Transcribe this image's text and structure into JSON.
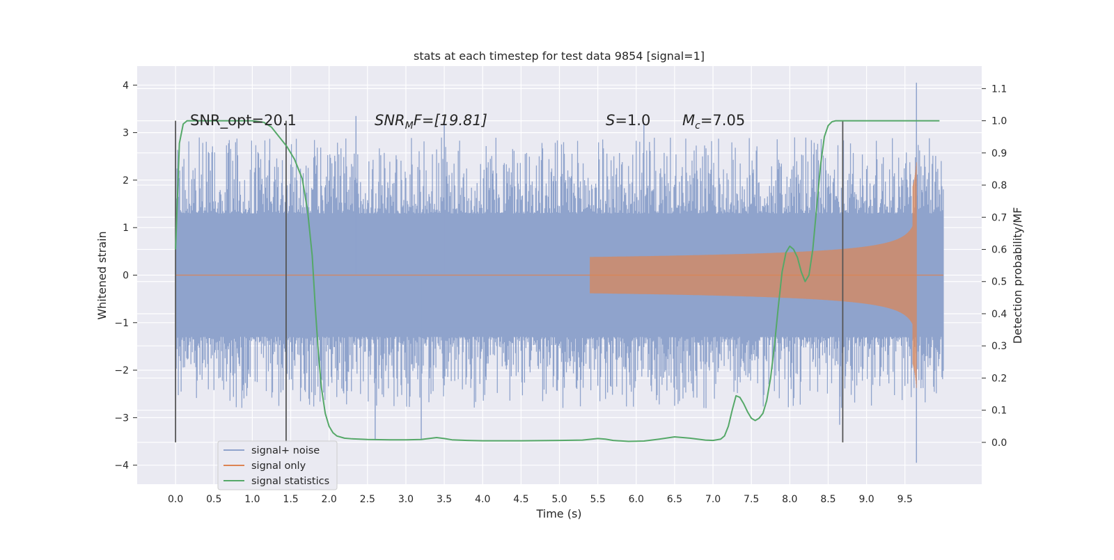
{
  "chart_data": {
    "type": "line",
    "title": "stats at each timestep for test data 9854 [signal=1]",
    "xlabel": "Time (s)",
    "ylabel": "Whitened strain",
    "ylabel_right": "Detection probability/MF",
    "xlim": [
      -0.5,
      10.5
    ],
    "ylim": [
      -4.4,
      4.4
    ],
    "ylim_right": [
      -0.13,
      1.17
    ],
    "xticks": [
      "0.0",
      "0.5",
      "1.0",
      "1.5",
      "2.0",
      "2.5",
      "3.0",
      "3.5",
      "4.0",
      "4.5",
      "5.0",
      "5.5",
      "6.0",
      "6.5",
      "7.0",
      "7.5",
      "8.0",
      "8.5",
      "9.0",
      "9.5"
    ],
    "yticks": [
      "4",
      "3",
      "2",
      "1",
      "0",
      "−1",
      "−2",
      "−3",
      "−4"
    ],
    "yticks_right": [
      "1.1",
      "1.0",
      "0.9",
      "0.8",
      "0.7",
      "0.6",
      "0.5",
      "0.4",
      "0.3",
      "0.2",
      "0.1",
      "0.0"
    ],
    "grid": true,
    "legend_position": "lower-left",
    "colors": {
      "background": "#eaeaf2",
      "grid": "#ffffff",
      "noise": "#8fa3cc",
      "signal": "#dd8452",
      "statistics": "#55a868",
      "vline": "#555555"
    },
    "annotations": {
      "snr_opt": "SNR_opt=20.1",
      "snr_mf_base": "SNR",
      "snr_mf_sub": "M",
      "snr_mf_rest": "F=[19.81]",
      "s_label": "S",
      "s_value": "=1.0",
      "mc_base": "M",
      "mc_sub": "c",
      "mc_value": "=7.05"
    },
    "vertical_lines_x": [
      0.0,
      1.44,
      8.69
    ],
    "series": [
      {
        "name": "signal+ noise",
        "kind": "noise",
        "envelope_typical": 1.3,
        "spikes": [
          {
            "x": 2.35,
            "y": 3.35
          },
          {
            "x": 3.5,
            "y": 3.2
          },
          {
            "x": 6.1,
            "y": 3.2
          },
          {
            "x": 2.6,
            "y": -3.45
          },
          {
            "x": 3.2,
            "y": -3.45
          },
          {
            "x": 9.65,
            "y": 4.05
          },
          {
            "x": 9.65,
            "y": -3.95
          },
          {
            "x": 8.65,
            "y": -3.15
          }
        ]
      },
      {
        "name": "signal only",
        "kind": "chirp",
        "start_x": 5.4,
        "peak_x": 9.65,
        "peak_amplitude": 2.4
      },
      {
        "name": "signal statistics",
        "kind": "line",
        "x": [
          0.0,
          0.05,
          0.1,
          0.15,
          0.25,
          0.4,
          0.6,
          0.8,
          1.0,
          1.15,
          1.25,
          1.35,
          1.45,
          1.55,
          1.65,
          1.72,
          1.78,
          1.82,
          1.86,
          1.9,
          1.95,
          2.0,
          2.05,
          2.1,
          2.2,
          2.3,
          2.5,
          2.8,
          3.0,
          3.2,
          3.3,
          3.4,
          3.5,
          3.6,
          3.8,
          4.0,
          4.5,
          5.0,
          5.3,
          5.5,
          5.6,
          5.7,
          5.9,
          6.1,
          6.3,
          6.5,
          6.7,
          6.9,
          7.0,
          7.1,
          7.15,
          7.2,
          7.25,
          7.3,
          7.35,
          7.4,
          7.45,
          7.5,
          7.55,
          7.6,
          7.65,
          7.7,
          7.75,
          7.8,
          7.85,
          7.9,
          7.95,
          8.0,
          8.05,
          8.1,
          8.15,
          8.2,
          8.25,
          8.3,
          8.35,
          8.4,
          8.45,
          8.5,
          8.55,
          8.6,
          8.65,
          8.7,
          8.75,
          8.8,
          8.85,
          8.9,
          8.95,
          9.0,
          9.2,
          9.5,
          9.95
        ],
        "y": [
          0.6,
          0.93,
          0.99,
          1.0,
          1.0,
          1.0,
          1.0,
          1.0,
          1.0,
          0.995,
          0.98,
          0.95,
          0.92,
          0.88,
          0.82,
          0.72,
          0.58,
          0.42,
          0.28,
          0.17,
          0.09,
          0.05,
          0.03,
          0.02,
          0.013,
          0.011,
          0.009,
          0.008,
          0.008,
          0.009,
          0.012,
          0.015,
          0.012,
          0.008,
          0.006,
          0.005,
          0.005,
          0.006,
          0.007,
          0.012,
          0.01,
          0.006,
          0.003,
          0.004,
          0.01,
          0.017,
          0.013,
          0.007,
          0.006,
          0.01,
          0.02,
          0.05,
          0.1,
          0.145,
          0.14,
          0.12,
          0.095,
          0.075,
          0.068,
          0.075,
          0.09,
          0.13,
          0.2,
          0.3,
          0.42,
          0.53,
          0.59,
          0.61,
          0.6,
          0.575,
          0.53,
          0.5,
          0.52,
          0.6,
          0.73,
          0.86,
          0.95,
          0.985,
          0.997,
          1.0,
          1.0,
          1.0,
          1.0,
          1.0,
          1.0,
          1.0,
          1.0,
          1.0,
          1.0,
          1.0,
          1.0
        ]
      }
    ]
  }
}
